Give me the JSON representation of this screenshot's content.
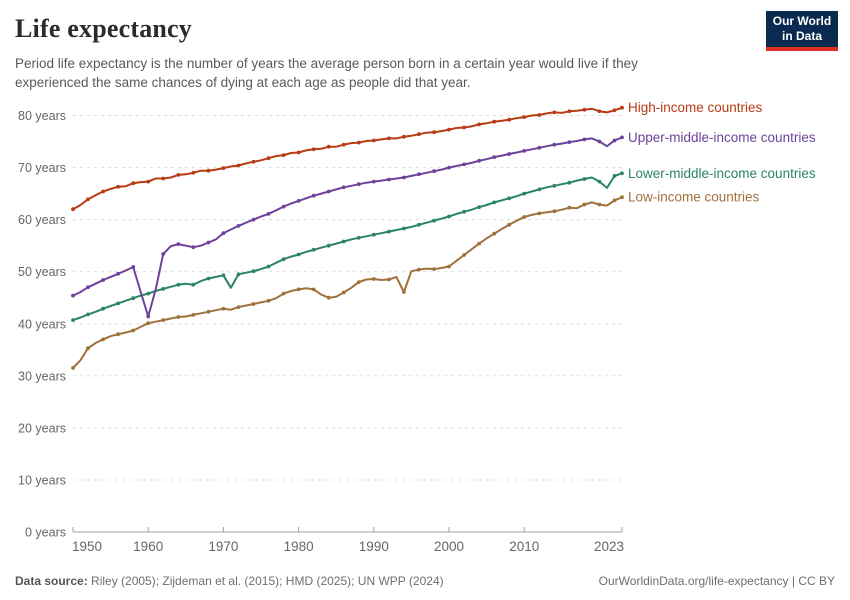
{
  "header": {
    "title": "Life expectancy",
    "subtitle": "Period life expectancy is the number of years the average person born in a certain year would live if they experienced the same chances of dying at each age as people did that year.",
    "logo": {
      "line1": "Our World",
      "line2": "in Data"
    }
  },
  "footer": {
    "source_label": "Data source:",
    "source_text": " Riley (2005); Zijdeman et al. (2015); HMD (2025); UN WPP (2024)",
    "link_text": "OurWorldinData.org/life-expectancy | CC BY"
  },
  "chart_data": {
    "type": "line",
    "title": "Life expectancy",
    "x": {
      "range": [
        1950,
        2023
      ],
      "ticks": [
        1950,
        1960,
        1970,
        1980,
        1990,
        2000,
        2010,
        2023
      ]
    },
    "y": {
      "range": [
        0,
        85
      ],
      "ticks": [
        0,
        10,
        20,
        30,
        40,
        50,
        60,
        70,
        80
      ],
      "tick_suffix": " years"
    },
    "grid": "dashed-horizontal",
    "legend_position": "right-of-line-ends",
    "colors": {
      "grid": "#dcdcdc",
      "axis": "#a3a3a3",
      "tick_text": "#666666"
    },
    "series": [
      {
        "name": "Low-income countries",
        "color": "#a0713d",
        "values": [
          31.5,
          33.0,
          35.3,
          36.3,
          37.0,
          37.6,
          38.0,
          38.3,
          38.7,
          39.4,
          40.1,
          40.4,
          40.7,
          41.0,
          41.3,
          41.4,
          41.7,
          42.0,
          42.3,
          42.6,
          42.9,
          42.7,
          43.2,
          43.5,
          43.8,
          44.1,
          44.4,
          44.9,
          45.8,
          46.3,
          46.6,
          46.8,
          46.6,
          45.6,
          45.0,
          45.2,
          46.0,
          46.9,
          48.0,
          48.5,
          48.6,
          48.4,
          48.5,
          49.0,
          46.1,
          50.1,
          50.4,
          50.6,
          50.5,
          50.7,
          51.0,
          52.1,
          53.2,
          54.3,
          55.4,
          56.4,
          57.3,
          58.2,
          59.0,
          59.8,
          60.5,
          60.9,
          61.2,
          61.4,
          61.6,
          61.9,
          62.3,
          62.2,
          62.9,
          63.3,
          62.9,
          62.7,
          63.7,
          64.3
        ]
      },
      {
        "name": "Lower-middle-income countries",
        "color": "#2c8465",
        "values": [
          40.7,
          41.2,
          41.8,
          42.3,
          42.9,
          43.4,
          43.9,
          44.4,
          44.9,
          45.4,
          45.8,
          46.3,
          46.7,
          47.1,
          47.5,
          47.7,
          47.5,
          48.2,
          48.7,
          49.0,
          49.3,
          46.9,
          49.5,
          49.8,
          50.1,
          50.5,
          51.0,
          51.7,
          52.4,
          52.9,
          53.3,
          53.8,
          54.2,
          54.6,
          55.0,
          55.4,
          55.8,
          56.2,
          56.5,
          56.8,
          57.1,
          57.4,
          57.7,
          58.0,
          58.3,
          58.6,
          59.0,
          59.4,
          59.8,
          60.2,
          60.6,
          61.1,
          61.5,
          61.9,
          62.4,
          62.8,
          63.3,
          63.7,
          64.1,
          64.5,
          65.0,
          65.4,
          65.8,
          66.2,
          66.5,
          66.8,
          67.1,
          67.5,
          67.8,
          68.1,
          67.3,
          66.1,
          68.4,
          68.9
        ]
      },
      {
        "name": "Upper-middle-income countries",
        "color": "#6d429b",
        "values": [
          45.4,
          46.1,
          47.0,
          47.7,
          48.4,
          49.0,
          49.6,
          50.2,
          50.9,
          46.1,
          41.4,
          46.6,
          53.4,
          54.9,
          55.3,
          55.0,
          54.7,
          55.0,
          55.6,
          56.2,
          57.4,
          58.1,
          58.8,
          59.4,
          60.0,
          60.6,
          61.1,
          61.8,
          62.5,
          63.1,
          63.6,
          64.1,
          64.6,
          65.0,
          65.4,
          65.8,
          66.2,
          66.5,
          66.8,
          67.1,
          67.3,
          67.5,
          67.7,
          67.9,
          68.1,
          68.4,
          68.7,
          69.0,
          69.3,
          69.6,
          70.0,
          70.3,
          70.6,
          70.9,
          71.3,
          71.6,
          72.0,
          72.3,
          72.6,
          72.9,
          73.2,
          73.5,
          73.8,
          74.1,
          74.4,
          74.6,
          74.9,
          75.1,
          75.4,
          75.6,
          75.0,
          74.1,
          75.2,
          75.8
        ]
      },
      {
        "name": "High-income countries",
        "color": "#b83b14",
        "values": [
          62.0,
          62.8,
          63.9,
          64.7,
          65.4,
          65.9,
          66.3,
          66.4,
          67.0,
          67.2,
          67.3,
          67.9,
          67.9,
          68.1,
          68.6,
          68.7,
          69.0,
          69.4,
          69.4,
          69.6,
          69.9,
          70.2,
          70.4,
          70.8,
          71.1,
          71.4,
          71.8,
          72.2,
          72.4,
          72.8,
          72.9,
          73.3,
          73.5,
          73.6,
          74.0,
          74.0,
          74.4,
          74.7,
          74.8,
          75.1,
          75.2,
          75.4,
          75.6,
          75.6,
          75.9,
          76.1,
          76.4,
          76.7,
          76.8,
          77.0,
          77.3,
          77.6,
          77.7,
          77.9,
          78.3,
          78.5,
          78.8,
          79.0,
          79.2,
          79.5,
          79.7,
          80.0,
          80.1,
          80.4,
          80.6,
          80.5,
          80.8,
          80.9,
          81.1,
          81.3,
          80.8,
          80.6,
          81.0,
          81.5
        ]
      }
    ]
  }
}
